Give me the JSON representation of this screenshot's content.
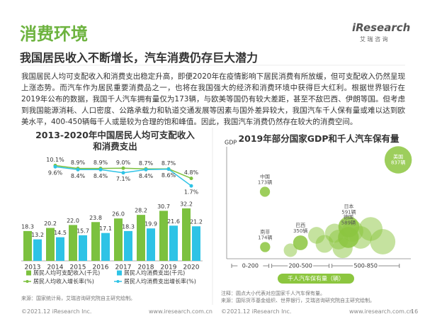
{
  "header": {
    "title": "消费环境",
    "subtitle": "我国居民收入不断增长，汽车消费仍存巨大潜力",
    "logo": "iResearch",
    "logo_sub": "艾 瑞 咨 询"
  },
  "paragraph": "我国居民人均可支配收入和消费支出稳定升高，即便2020年在疫情影响下居民消费有所放缓，但可支配收入仍然呈现上涨态势。而汽车作为居民重要消费品之一，也将在我国强大的经济和消费环境中获得巨大红利。根据世界银行在2019年公布的数据，我国千人汽车拥有量仅为173辆，与欧美等国仍有较大差距，甚至不敌巴西、伊朗等国。但考虑到我国能源消耗、人口密度、公路承载力和轨道交通发展等因素与国外差异较大，我国汽车千人保有量或难以达到欧美水平，400-450辆每千人或是较为合理的饱和峰值。因此，我国汽车消费仍然存在较大的消费空间。",
  "chart_data": [
    {
      "type": "bar",
      "title": "2013-2020年中国居民人均可支配收入和消费支出",
      "categories": [
        "2013",
        "2014",
        "2015",
        "2016",
        "2017",
        "2018",
        "2019",
        "2020"
      ],
      "ylim": [
        0,
        50
      ],
      "y2lim": [
        0,
        12
      ],
      "series": [
        {
          "name": "居民人均可支配收入(千元)",
          "type": "bar",
          "color": "#7cc13f",
          "values": [
            18.3,
            20.2,
            22.0,
            23.8,
            26.0,
            28.2,
            30.7,
            32.2
          ],
          "value_labels": [
            "18.3",
            "20.2",
            "22.0",
            "23.8",
            "26.0",
            "28.2",
            "30.7",
            "32.2"
          ]
        },
        {
          "name": "居民人均消费支出(千元)",
          "type": "bar",
          "color": "#2ec3e6",
          "values": [
            13.2,
            14.5,
            15.7,
            17.1,
            18.3,
            19.9,
            21.6,
            21.2
          ],
          "value_labels": [
            "13.2",
            "14.5",
            "15.7",
            "17.1",
            "18.3",
            "19.9",
            "21.6",
            "21.2"
          ]
        },
        {
          "name": "居民人均收入增长率(%)",
          "type": "line",
          "axis": "y2",
          "color": "#7cc13f",
          "values": [
            null,
            10.1,
            8.9,
            8.9,
            9.0,
            8.7,
            8.7,
            4.8
          ],
          "value_labels": [
            null,
            "10.1%",
            "8.9%",
            "8.9%",
            "9.0%",
            "8.7%",
            "8.7%",
            "4.8%"
          ]
        },
        {
          "name": "居民人均消费支出增长率(%)",
          "type": "line",
          "axis": "y2",
          "color": "#2ec3e6",
          "values": [
            null,
            9.6,
            8.4,
            8.4,
            7.1,
            8.4,
            8.6,
            1.7
          ],
          "value_labels": [
            null,
            "9.6%",
            "8.4%",
            "8.4%",
            "7.1%",
            "8.4%",
            "8.6%",
            "1.7%"
          ]
        }
      ],
      "source": "来源：国家统计局，艾瑞咨询研究院自主研究绘制。"
    },
    {
      "type": "scatter",
      "title": "2019年部分国家GDP和千人汽车保有量",
      "color": "#8cc63f",
      "y_label": "GDP",
      "x_label": "千人汽车保有量（辆）",
      "xlim": [
        0,
        900
      ],
      "ylim": [
        0,
        100
      ],
      "x_bands": [
        {
          "from": 0,
          "to": 200,
          "label": "0-200"
        },
        {
          "from": 200,
          "to": 500,
          "label": "200-500"
        },
        {
          "from": 500,
          "to": 850,
          "label": "500-850"
        }
      ],
      "x": [
        837,
        173,
        591,
        589,
        350,
        174,
        430,
        470,
        520,
        540,
        610,
        650,
        700,
        760,
        300,
        560
      ],
      "y": [
        93,
        63,
        30,
        20,
        15,
        11,
        22,
        14,
        24,
        18,
        26,
        20,
        28,
        16,
        8,
        10
      ],
      "labels": [
        "美国",
        "中国",
        "日本",
        "德国",
        "巴西",
        "南非",
        null,
        null,
        null,
        null,
        null,
        null,
        null,
        null,
        null,
        null
      ],
      "value_labels": [
        "837辆",
        "173辆",
        "591辆",
        "589辆",
        "350辆",
        "174辆",
        null,
        null,
        null,
        null,
        null,
        null,
        null,
        null,
        null,
        null
      ],
      "notes": [
        "注释：圆点大小代表对应国家千人汽车保有量。",
        "来源：国际货币基金组织、世界银行，艾瑞咨询研究院自主研究绘制。"
      ]
    }
  ],
  "footer": {
    "left": [
      "©2021.12 iResearch Inc.",
      "www.iresearch.com.cn"
    ],
    "right": [
      "©2021.12 iResearch Inc.",
      "www.iresearch.com.cn"
    ],
    "page": 16
  }
}
